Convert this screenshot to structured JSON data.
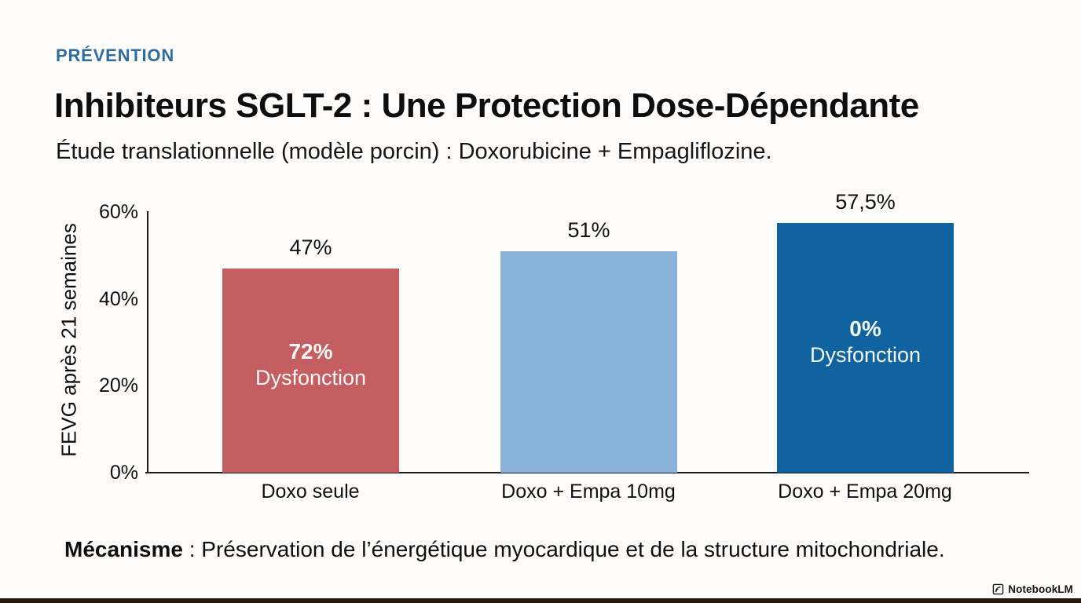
{
  "page": {
    "background_color": "#fdfcfa",
    "bottom_strip_color": "#261910"
  },
  "header": {
    "eyebrow": "PRÉVENTION",
    "eyebrow_color": "#2f6d9e",
    "title": "Inhibiteurs SGLT-2 : Une Protection Dose-Dépendante",
    "subtitle": "Étude translationnelle (modèle porcin) : Doxorubicine + Empagliflozine."
  },
  "chart_data": {
    "type": "bar",
    "title": "",
    "xlabel": "",
    "ylabel": "FEVG après 21 semaines",
    "ylim": [
      0,
      60
    ],
    "yticks": [
      "60%",
      "40%",
      "20%",
      "0%"
    ],
    "grid": false,
    "legend": null,
    "categories": [
      "Doxo seule",
      "Doxo + Empa 10mg",
      "Doxo + Empa 20mg"
    ],
    "values": [
      47,
      51,
      57.5
    ],
    "bars": [
      {
        "category": "Doxo seule",
        "value": 47,
        "value_label": "47%",
        "color": "#c45e60",
        "inner_value": "72%",
        "inner_label": "Dysfonction"
      },
      {
        "category": "Doxo + Empa 10mg",
        "value": 51,
        "value_label": "51%",
        "color": "#89b2d9",
        "inner_value": "",
        "inner_label": ""
      },
      {
        "category": "Doxo + Empa 20mg",
        "value": 57.5,
        "value_label": "57,5%",
        "color": "#11639f",
        "inner_value": "0%",
        "inner_label": "Dysfonction"
      }
    ]
  },
  "footer": {
    "mechanism_label": "Mécanisme",
    "mechanism_text": " : Préservation de l’énergétique myocardique et de la structure mitochondriale.",
    "watermark": "NotebookLM"
  }
}
